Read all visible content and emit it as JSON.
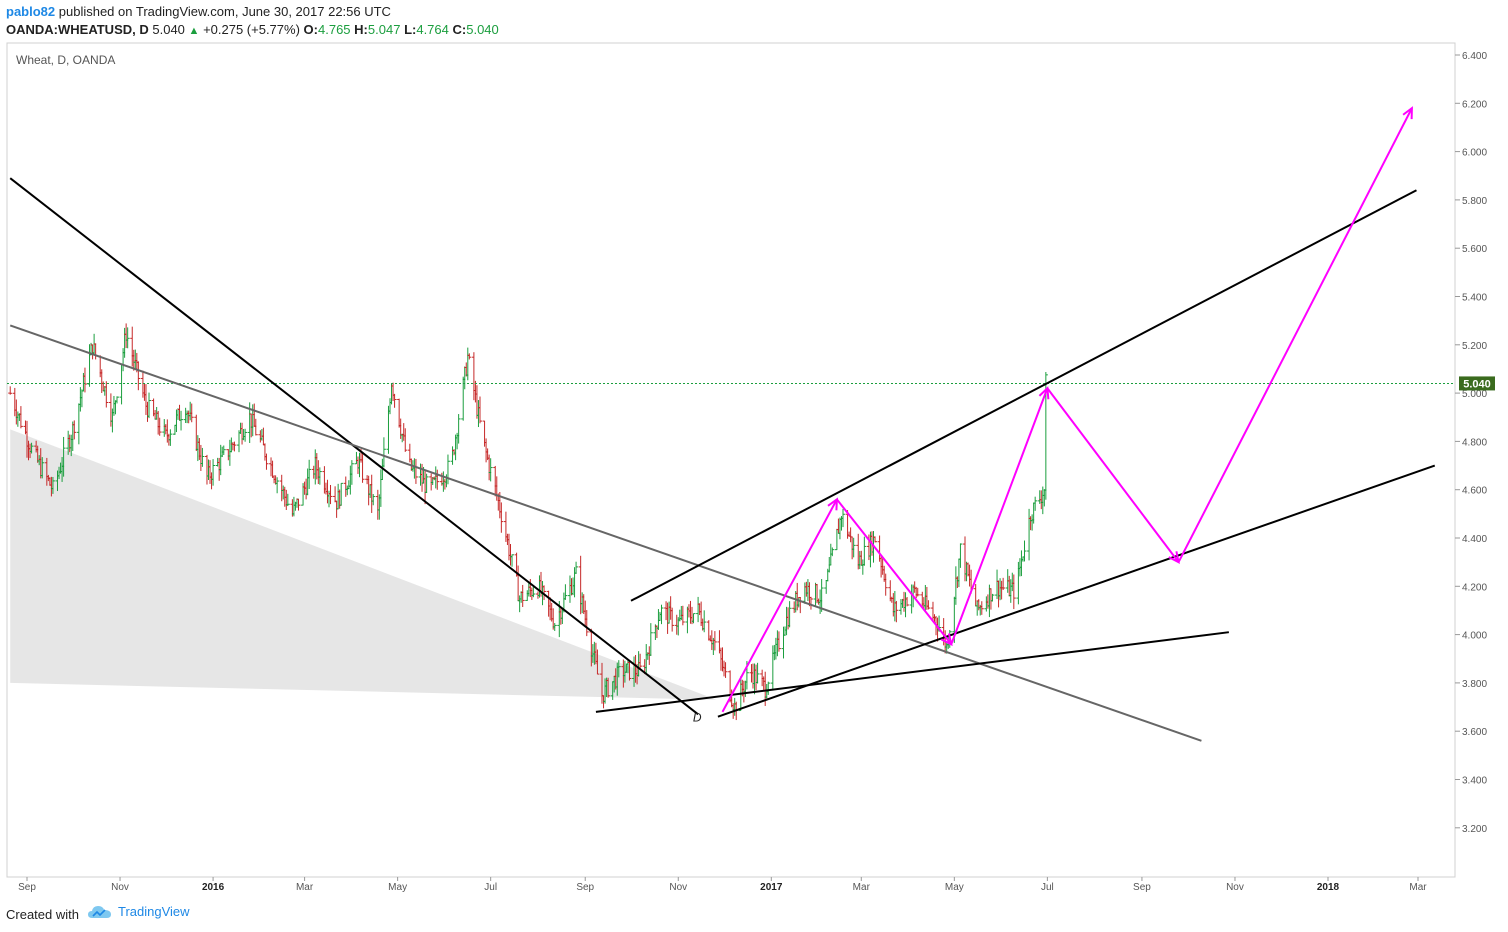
{
  "header": {
    "author": "pablo82",
    "published_text": "published on TradingView.com, June 30, 2017 22:56 UTC",
    "symbol": "OANDA:WHEATUSD, D",
    "last": "5.040",
    "change": "+0.275 (+5.77%)",
    "o_label": "O:",
    "o_value": "4.765",
    "h_label": "H:",
    "h_value": "5.047",
    "l_label": "L:",
    "l_value": "4.764",
    "c_label": "C:",
    "c_value": "5.040"
  },
  "chart_title": "Wheat, D, OANDA",
  "footer": {
    "created_with": "Created with",
    "brand": "TradingView"
  },
  "colors": {
    "arrows": "#ff00ff",
    "trendlines": "#000000",
    "up_bar": "#1b9e3e",
    "down_bar": "#c62828",
    "price_badge": "#3a6b1e",
    "shade": "#e6e6e6"
  },
  "chart_data": {
    "type": "ohlc",
    "ylim": [
      3.1,
      6.46
    ],
    "y_ticks": [
      "6.400",
      "6.200",
      "6.000",
      "5.800",
      "5.600",
      "5.400",
      "5.200",
      "5.000",
      "4.800",
      "4.600",
      "4.400",
      "4.200",
      "4.000",
      "3.800",
      "3.600",
      "3.400",
      "3.200"
    ],
    "x_ticks": [
      "Sep",
      "Nov",
      "2016",
      "Mar",
      "May",
      "Jul",
      "Sep",
      "Nov",
      "2017",
      "Mar",
      "May",
      "Jul",
      "Sep",
      "Nov",
      "2018",
      "Mar"
    ],
    "bold_ticks": [
      "2016",
      "2017",
      "2018"
    ],
    "current_price": "5.040",
    "point_label": "D",
    "price_path": [
      [
        "2015-08-21",
        5.0
      ],
      [
        "2015-09-05",
        4.75
      ],
      [
        "2015-09-18",
        4.6
      ],
      [
        "2015-10-01",
        4.85
      ],
      [
        "2015-10-14",
        5.2
      ],
      [
        "2015-10-27",
        4.9
      ],
      [
        "2015-11-05",
        5.25
      ],
      [
        "2015-11-18",
        4.95
      ],
      [
        "2015-12-01",
        4.82
      ],
      [
        "2015-12-14",
        4.95
      ],
      [
        "2015-12-28",
        4.65
      ],
      [
        "2016-01-10",
        4.75
      ],
      [
        "2016-01-25",
        4.9
      ],
      [
        "2016-02-08",
        4.7
      ],
      [
        "2016-02-22",
        4.5
      ],
      [
        "2016-03-08",
        4.7
      ],
      [
        "2016-03-22",
        4.55
      ],
      [
        "2016-04-05",
        4.72
      ],
      [
        "2016-04-18",
        4.5
      ],
      [
        "2016-04-27",
        5.05
      ],
      [
        "2016-05-08",
        4.7
      ],
      [
        "2016-05-22",
        4.6
      ],
      [
        "2016-06-05",
        4.7
      ],
      [
        "2016-06-16",
        5.15
      ],
      [
        "2016-06-26",
        4.8
      ],
      [
        "2016-07-08",
        4.5
      ],
      [
        "2016-07-20",
        4.15
      ],
      [
        "2016-08-01",
        4.2
      ],
      [
        "2016-08-12",
        4.05
      ],
      [
        "2016-08-26",
        4.25
      ],
      [
        "2016-09-05",
        3.95
      ],
      [
        "2016-09-12",
        3.75
      ],
      [
        "2016-09-25",
        3.85
      ],
      [
        "2016-10-08",
        3.85
      ],
      [
        "2016-10-20",
        4.1
      ],
      [
        "2016-11-01",
        4.05
      ],
      [
        "2016-11-14",
        4.1
      ],
      [
        "2016-11-26",
        3.95
      ],
      [
        "2016-12-08",
        3.7
      ],
      [
        "2016-12-18",
        3.85
      ],
      [
        "2016-12-28",
        3.78
      ],
      [
        "2017-01-10",
        4.05
      ],
      [
        "2017-01-22",
        4.2
      ],
      [
        "2017-02-04",
        4.15
      ],
      [
        "2017-02-16",
        4.5
      ],
      [
        "2017-02-27",
        4.3
      ],
      [
        "2017-03-10",
        4.4
      ],
      [
        "2017-03-22",
        4.1
      ],
      [
        "2017-04-05",
        4.18
      ],
      [
        "2017-04-20",
        4.05
      ],
      [
        "2017-04-26",
        3.95
      ],
      [
        "2017-05-05",
        4.35
      ],
      [
        "2017-05-16",
        4.1
      ],
      [
        "2017-05-28",
        4.2
      ],
      [
        "2017-06-10",
        4.18
      ],
      [
        "2017-06-20",
        4.5
      ],
      [
        "2017-06-29",
        4.6
      ],
      [
        "2017-06-30",
        5.04
      ]
    ],
    "trendlines": [
      {
        "from": [
          "2015-08-21",
          5.89
        ],
        "to": [
          "2016-11-14",
          3.67
        ]
      },
      {
        "from": [
          "2015-08-21",
          5.28
        ],
        "to": [
          "2017-10-10",
          3.56
        ]
      },
      {
        "from": [
          "2016-09-08",
          3.68
        ],
        "to": [
          "2017-10-28",
          4.01
        ]
      },
      {
        "from": [
          "2016-10-01",
          4.14
        ],
        "to": [
          "2018-02-28",
          5.84
        ]
      },
      {
        "from": [
          "2016-11-27",
          3.66
        ],
        "to": [
          "2018-03-12",
          4.7
        ]
      }
    ],
    "projection_arrows": [
      [
        "2016-11-30",
        3.68
      ],
      [
        "2017-02-13",
        4.56
      ],
      [
        "2017-04-29",
        3.96
      ],
      [
        "2017-07-01",
        5.02
      ],
      [
        "2017-09-25",
        4.3
      ],
      [
        "2018-02-25",
        6.18
      ]
    ],
    "shaded_wedge": [
      [
        "2015-08-21",
        4.85
      ],
      [
        "2016-11-26",
        3.73
      ],
      [
        "2015-08-21",
        3.8
      ]
    ]
  }
}
